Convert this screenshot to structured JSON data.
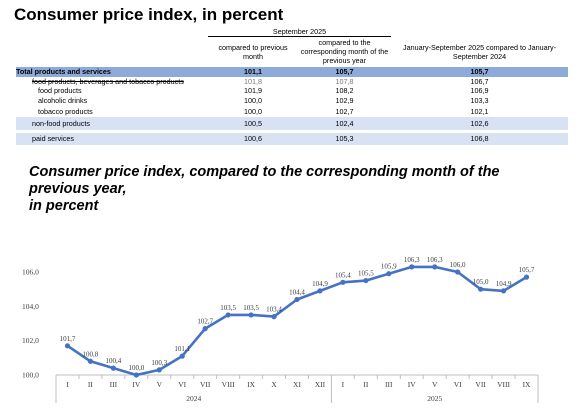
{
  "title": "Consumer price index, in percent",
  "table": {
    "period_header": "September 2025",
    "col1": "compared to previous month",
    "col2": "compared to the corresponding month of the previous year",
    "col3": "January-September 2025 compared to January-September 2024",
    "rows": [
      {
        "label": "Total products and services",
        "v1": "101,1",
        "v2": "105,7",
        "v3": "105,7"
      },
      {
        "label": "food products, beverages and tobacco products",
        "v1": "101,8",
        "v2": "107,8",
        "v3": "106,7"
      },
      {
        "label": "food products",
        "v1": "101,9",
        "v2": "108,2",
        "v3": "106,9"
      },
      {
        "label": "alcoholic drinks",
        "v1": "100,0",
        "v2": "102,9",
        "v3": "103,3"
      },
      {
        "label": "tobacco products",
        "v1": "100,0",
        "v2": "102,7",
        "v3": "102,1"
      },
      {
        "label": "non-food products",
        "v1": "100,5",
        "v2": "102,4",
        "v3": "102,6"
      },
      {
        "label": "paid services",
        "v1": "100,6",
        "v2": "105,3",
        "v3": "106,8"
      }
    ]
  },
  "chart_title_lines": [
    "Consumer price index, compared to the corresponding month of the",
    "previous year,",
    "in percent"
  ],
  "chart_data": {
    "type": "line",
    "title": "Consumer price index, compared to the corresponding month of the previous year, in percent",
    "categories": [
      "I",
      "II",
      "III",
      "IV",
      "V",
      "VI",
      "VII",
      "VIII",
      "IX",
      "X",
      "XI",
      "XII",
      "I",
      "II",
      "III",
      "IV",
      "V",
      "VI",
      "VII",
      "VIII",
      "IX"
    ],
    "category_groups": [
      {
        "label": "2024",
        "start": 0,
        "end": 11
      },
      {
        "label": "2025",
        "start": 12,
        "end": 20
      }
    ],
    "values": [
      101.7,
      100.8,
      100.4,
      100.0,
      100.3,
      101.1,
      102.7,
      103.5,
      103.5,
      103.4,
      104.4,
      104.9,
      105.4,
      105.5,
      105.9,
      106.3,
      106.3,
      106.0,
      105.0,
      104.9,
      105.7
    ],
    "labels": [
      "101,7",
      "100,8",
      "100,4",
      "100,0",
      "100,3",
      "101,1",
      "102,7",
      "103,5",
      "103,5",
      "103,4",
      "104,4",
      "104,9",
      "105,4",
      "105,5",
      "105,9",
      "106,3",
      "106,3",
      "106,0",
      "105,0",
      "104,9",
      "105,7"
    ],
    "yticks": [
      "100,0",
      "102,0",
      "104,0",
      "106,0"
    ],
    "ylim": [
      100,
      106
    ],
    "grid": false,
    "color": "#4472c4"
  }
}
